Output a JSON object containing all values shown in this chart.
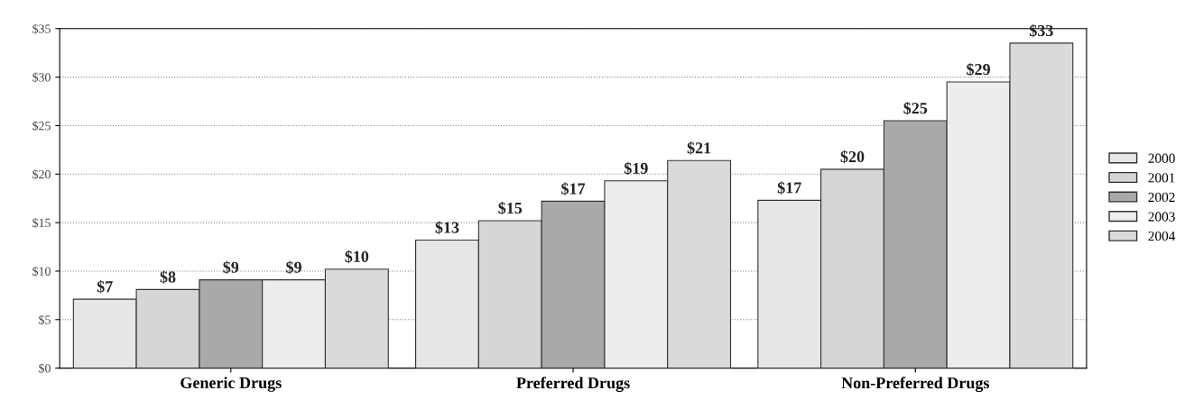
{
  "chart_data": {
    "type": "bar",
    "categories": [
      "Generic Drugs",
      "Preferred Drugs",
      "Non-Preferred Drugs"
    ],
    "series": [
      {
        "name": "2000",
        "color": "#e6e6e6",
        "values": [
          7.1,
          13.2,
          17.3
        ],
        "value_labels": [
          "$7",
          "$13",
          "$17"
        ]
      },
      {
        "name": "2001",
        "color": "#d6d6d6",
        "values": [
          8.1,
          15.2,
          20.5
        ],
        "value_labels": [
          "$8",
          "$15",
          "$20"
        ]
      },
      {
        "name": "2002",
        "color": "#a9a9a9",
        "values": [
          9.1,
          17.2,
          25.5
        ],
        "value_labels": [
          "$9",
          "$17",
          "$25"
        ]
      },
      {
        "name": "2003",
        "color": "#ededed",
        "values": [
          9.1,
          19.3,
          29.5
        ],
        "value_labels": [
          "$9",
          "$19",
          "$29"
        ]
      },
      {
        "name": "2004",
        "color": "#dadada",
        "values": [
          10.2,
          21.4,
          33.5
        ],
        "value_labels": [
          "$10",
          "$21",
          "$33"
        ]
      }
    ],
    "ylim": [
      0,
      35
    ],
    "yticks": [
      {
        "value": 0,
        "label": "$0"
      },
      {
        "value": 5,
        "label": "$5"
      },
      {
        "value": 10,
        "label": "$10"
      },
      {
        "value": 15,
        "label": "$15"
      },
      {
        "value": 20,
        "label": "$20"
      },
      {
        "value": 25,
        "label": "$25"
      },
      {
        "value": 30,
        "label": "$30"
      },
      {
        "value": 35,
        "label": "$35"
      }
    ],
    "grid": "y",
    "legend": "right"
  }
}
